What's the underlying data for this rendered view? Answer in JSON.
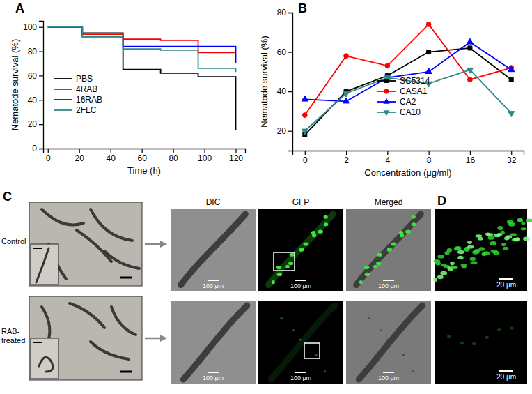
{
  "chart_data": [
    {
      "type": "line",
      "title": "A",
      "x_label": "Time (h)",
      "y_label": "Nematode survival (%)",
      "line_style": "step",
      "legend": "lower left",
      "x": [
        0,
        22,
        48,
        72,
        96,
        120
      ],
      "xlim": [
        -3,
        126
      ],
      "xticks": [
        0,
        20,
        40,
        60,
        80,
        100,
        120
      ],
      "ylim": [
        0,
        105
      ],
      "yticks": [
        0,
        20,
        40,
        60,
        80,
        100
      ],
      "series": [
        {
          "name": "PBS",
          "color": "#000000",
          "values": [
            100,
            95,
            65,
            62,
            59,
            15
          ]
        },
        {
          "name": "4RAB",
          "color": "#ff0000",
          "values": [
            100,
            94,
            90,
            89,
            79,
            79
          ]
        },
        {
          "name": "16RAB",
          "color": "#0000ff",
          "values": [
            100,
            92,
            84,
            84,
            84,
            70
          ]
        },
        {
          "name": "2FLC",
          "color": "#2e8b8b",
          "values": [
            100,
            92,
            82,
            81,
            66,
            63
          ]
        }
      ]
    },
    {
      "type": "line",
      "title": "B",
      "x_label": "Concentration (μg/ml)",
      "y_label": "Nematode survival (%)",
      "legend": "lower right",
      "categories": [
        "0",
        "2",
        "4",
        "8",
        "16",
        "32"
      ],
      "ylim": [
        10,
        80
      ],
      "yticks": [
        20,
        40,
        60,
        80
      ],
      "series": [
        {
          "name": "SC5314",
          "color": "#000000",
          "marker": "square",
          "values": [
            18,
            40,
            48,
            60,
            62,
            46
          ]
        },
        {
          "name": "CASA1",
          "color": "#ff0000",
          "marker": "circle",
          "values": [
            28,
            58,
            53,
            74,
            46,
            52
          ]
        },
        {
          "name": "CA2",
          "color": "#0000ff",
          "marker": "triangle-up",
          "values": [
            36,
            35,
            47,
            50,
            65,
            51
          ]
        },
        {
          "name": "CA10",
          "color": "#2e8b8b",
          "marker": "triangle-down",
          "values": [
            20,
            39,
            47,
            44,
            51,
            29
          ]
        }
      ]
    }
  ],
  "image_panels": {
    "c": {
      "label": "C",
      "rows": [
        "Control",
        "RAB-treated"
      ],
      "columns": [
        "DIC",
        "GFP",
        "Merged"
      ],
      "scale_bar": "100 μm"
    },
    "d": {
      "label": "D",
      "scale_bar": "20 μm"
    }
  }
}
